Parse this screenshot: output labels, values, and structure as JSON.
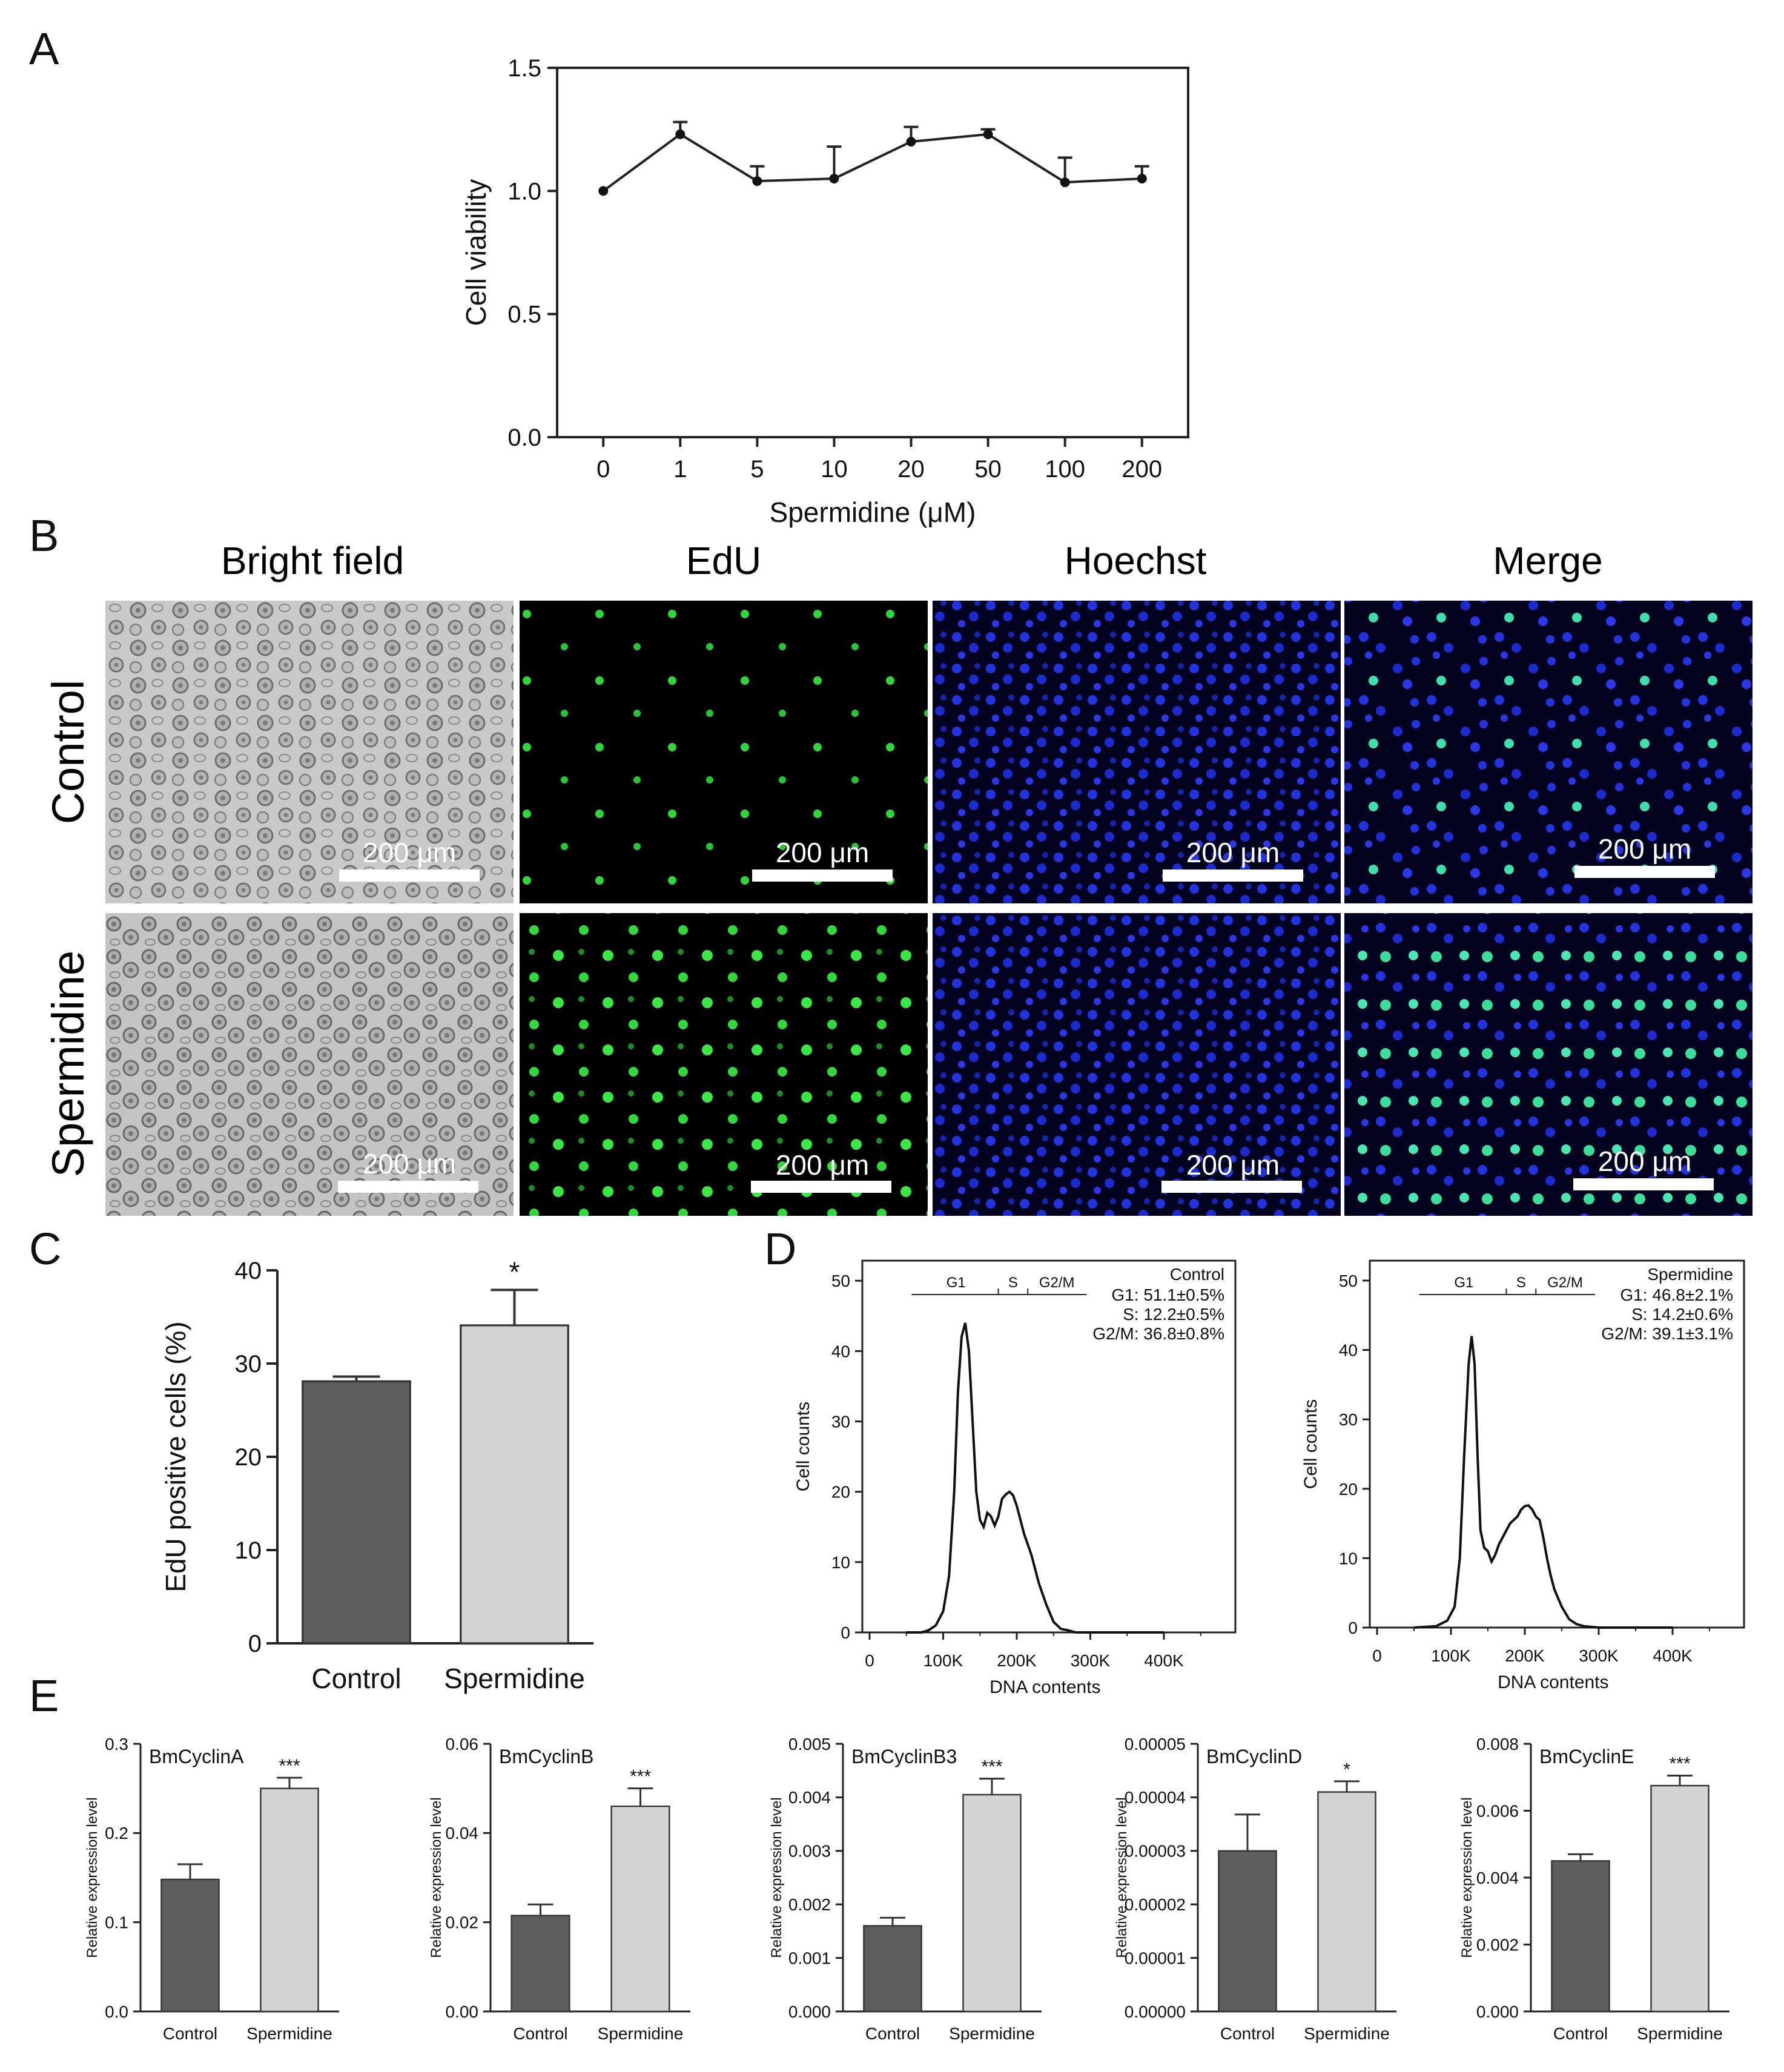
{
  "panels": {
    "A": {
      "label": "A"
    },
    "B": {
      "label": "B",
      "columns": [
        "Bright field",
        "EdU",
        "Hoechst",
        "Merge"
      ],
      "rows": [
        "Control",
        "Spermidine"
      ],
      "scale_bar": "200 μm"
    },
    "C": {
      "label": "C"
    },
    "D": {
      "label": "D"
    },
    "E": {
      "label": "E"
    }
  },
  "chart_data": [
    {
      "id": "A",
      "type": "line",
      "xlabel": "Spermidine (μM)",
      "ylabel": "Cell viability",
      "categories": [
        "0",
        "1",
        "5",
        "10",
        "20",
        "50",
        "100",
        "200"
      ],
      "values": [
        1.0,
        1.23,
        1.04,
        1.05,
        1.2,
        1.23,
        1.035,
        1.05
      ],
      "errors": [
        0,
        0.05,
        0.06,
        0.13,
        0.06,
        0.02,
        0.1,
        0.05
      ],
      "ylim": [
        0,
        1.5
      ],
      "yticks": [
        "0.0",
        "0.5",
        "1.0",
        "1.5"
      ]
    },
    {
      "id": "C",
      "type": "bar",
      "ylabel": "EdU positive cells (%)",
      "categories": [
        "Control",
        "Spermidine"
      ],
      "values": [
        28.1,
        34.1
      ],
      "errors": [
        0.5,
        3.8
      ],
      "significance": [
        "",
        "*"
      ],
      "ylim": [
        0,
        40
      ],
      "yticks": [
        "0",
        "10",
        "20",
        "30",
        "40"
      ],
      "colors": [
        "#5e5e5e",
        "#d3d3d3"
      ]
    },
    {
      "id": "D-control",
      "type": "line",
      "xlabel": "DNA contents",
      "ylabel": "Cell counts",
      "legend_title": "Control",
      "stats": [
        "G1: 51.1±0.5%",
        "S: 12.2±0.5%",
        "G2/M: 36.8±0.8%"
      ],
      "gates": [
        "G1",
        "S",
        "G2/M"
      ],
      "xticks": [
        "0",
        "100K",
        "200K",
        "300K",
        "400K"
      ],
      "yticks": [
        "0",
        "10",
        "20",
        "30",
        "40",
        "50"
      ],
      "xlim": [
        0,
        400000
      ],
      "ylim": [
        0,
        52
      ],
      "x": [
        50000,
        70000,
        80000,
        90000,
        100000,
        108000,
        115000,
        120000,
        125000,
        130000,
        135000,
        140000,
        145000,
        150000,
        155000,
        160000,
        165000,
        170000,
        175000,
        180000,
        185000,
        190000,
        195000,
        200000,
        205000,
        210000,
        215000,
        220000,
        225000,
        230000,
        240000,
        250000,
        260000,
        270000,
        280000,
        300000,
        350000,
        400000
      ],
      "y": [
        0,
        0,
        0.3,
        1,
        3,
        8,
        20,
        34,
        42,
        44,
        40,
        30,
        20,
        16,
        15,
        17,
        16.5,
        15.2,
        16.5,
        19,
        19.6,
        20,
        19.5,
        18,
        16,
        14,
        12.5,
        11,
        9,
        7,
        4,
        1.5,
        0.5,
        0.3,
        0,
        0,
        0,
        0
      ]
    },
    {
      "id": "D-spermidine",
      "type": "line",
      "xlabel": "DNA contents",
      "ylabel": "Cell counts",
      "legend_title": "Spermidine",
      "stats": [
        "G1: 46.8±2.1%",
        "S: 14.2±0.6%",
        "G2/M: 39.1±3.1%"
      ],
      "gates": [
        "G1",
        "S",
        "G2/M"
      ],
      "xticks": [
        "0",
        "100K",
        "200K",
        "300K",
        "400K"
      ],
      "yticks": [
        "0",
        "10",
        "20",
        "30",
        "40",
        "50"
      ],
      "xlim": [
        0,
        400000
      ],
      "ylim": [
        0,
        52
      ],
      "x": [
        50000,
        80000,
        95000,
        105000,
        112000,
        118000,
        124000,
        128000,
        132000,
        136000,
        140000,
        145000,
        150000,
        155000,
        160000,
        165000,
        170000,
        175000,
        180000,
        185000,
        190000,
        195000,
        200000,
        205000,
        210000,
        215000,
        220000,
        225000,
        230000,
        235000,
        240000,
        250000,
        260000,
        270000,
        280000,
        300000,
        350000,
        400000
      ],
      "y": [
        0,
        0.2,
        1,
        3,
        10,
        25,
        38,
        42,
        38,
        25,
        14,
        11.5,
        11,
        9.5,
        10.5,
        12,
        13,
        14,
        15,
        15.5,
        16,
        17,
        17.5,
        17.6,
        17,
        16,
        15.5,
        13,
        10,
        7.5,
        5.5,
        3,
        1.2,
        0.5,
        0.2,
        0,
        0,
        0
      ]
    },
    {
      "id": "E-BmCyclinA",
      "type": "bar",
      "title": "BmCyclinA",
      "ylabel": "Relative expression level",
      "categories": [
        "Control",
        "Spermidine"
      ],
      "values": [
        0.148,
        0.25
      ],
      "errors": [
        0.017,
        0.012
      ],
      "significance": [
        "",
        "***"
      ],
      "ylim": [
        0,
        0.3
      ],
      "yticks": [
        "0.0",
        "0.1",
        "0.2",
        "0.3"
      ],
      "colors": [
        "#5e5e5e",
        "#d3d3d3"
      ]
    },
    {
      "id": "E-BmCyclinB",
      "type": "bar",
      "title": "BmCyclinB",
      "ylabel": "Relative expression level",
      "categories": [
        "Control",
        "Spermidine"
      ],
      "values": [
        0.0215,
        0.046
      ],
      "errors": [
        0.0025,
        0.004
      ],
      "significance": [
        "",
        "***"
      ],
      "ylim": [
        0,
        0.06
      ],
      "yticks": [
        "0.00",
        "0.02",
        "0.04",
        "0.06"
      ],
      "colors": [
        "#5e5e5e",
        "#d3d3d3"
      ]
    },
    {
      "id": "E-BmCyclinB3",
      "type": "bar",
      "title": "BmCyclinB3",
      "ylabel": "Relative expression level",
      "categories": [
        "Control",
        "Spermidine"
      ],
      "values": [
        0.0016,
        0.00405
      ],
      "errors": [
        0.00015,
        0.0003
      ],
      "significance": [
        "",
        "***"
      ],
      "ylim": [
        0,
        0.005
      ],
      "yticks": [
        "0.000",
        "0.001",
        "0.002",
        "0.003",
        "0.004",
        "0.005"
      ],
      "colors": [
        "#5e5e5e",
        "#d3d3d3"
      ]
    },
    {
      "id": "E-BmCyclinD",
      "type": "bar",
      "title": "BmCyclinD",
      "ylabel": "Relative expression level",
      "categories": [
        "Control",
        "Spermidine"
      ],
      "values": [
        3e-05,
        4.1e-05
      ],
      "errors": [
        6.8e-06,
        2e-06
      ],
      "significance": [
        "",
        "*"
      ],
      "ylim": [
        0,
        5e-05
      ],
      "yticks": [
        "0.00000",
        "0.00001",
        "0.00002",
        "0.00003",
        "0.00004",
        "0.00005"
      ],
      "colors": [
        "#5e5e5e",
        "#d3d3d3"
      ]
    },
    {
      "id": "E-BmCyclinE",
      "type": "bar",
      "title": "BmCyclinE",
      "ylabel": "Relative expression level",
      "categories": [
        "Control",
        "Spermidine"
      ],
      "values": [
        0.0045,
        0.00675
      ],
      "errors": [
        0.0002,
        0.0003
      ],
      "significance": [
        "",
        "***"
      ],
      "ylim": [
        0,
        0.008
      ],
      "yticks": [
        "0.000",
        "0.002",
        "0.004",
        "0.006",
        "0.008"
      ],
      "colors": [
        "#5e5e5e",
        "#d3d3d3"
      ]
    }
  ]
}
